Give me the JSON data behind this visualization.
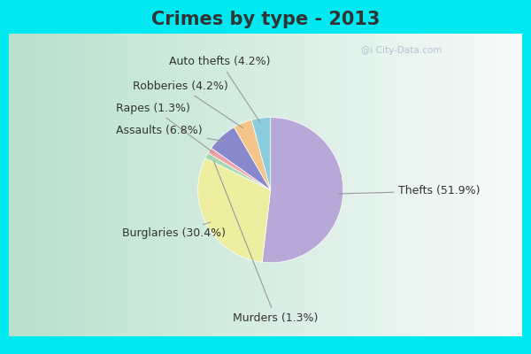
{
  "title": "Crimes by type - 2013",
  "slices": [
    {
      "label": "Thefts (51.9%)",
      "value": 51.9,
      "color": "#b8a8d8"
    },
    {
      "label": "Burglaries (30.4%)",
      "value": 30.4,
      "color": "#eeeea0"
    },
    {
      "label": "Murders (1.3%)",
      "value": 1.3,
      "color": "#a8d8b0"
    },
    {
      "label": "Rapes (1.3%)",
      "value": 1.3,
      "color": "#f0a0a8"
    },
    {
      "label": "Assaults (6.8%)",
      "value": 6.8,
      "color": "#8888cc"
    },
    {
      "label": "Robberies (4.2%)",
      "value": 4.2,
      "color": "#f5c488"
    },
    {
      "label": "Auto thefts (4.2%)",
      "value": 4.2,
      "color": "#88ccdd"
    }
  ],
  "border_color": "#00e8f0",
  "bg_color_left": "#b8ddc8",
  "bg_color_right": "#e8f0e8",
  "title_fontsize": 15,
  "label_fontsize": 9,
  "watermark": "@i City-Data.com",
  "border_width": 10
}
